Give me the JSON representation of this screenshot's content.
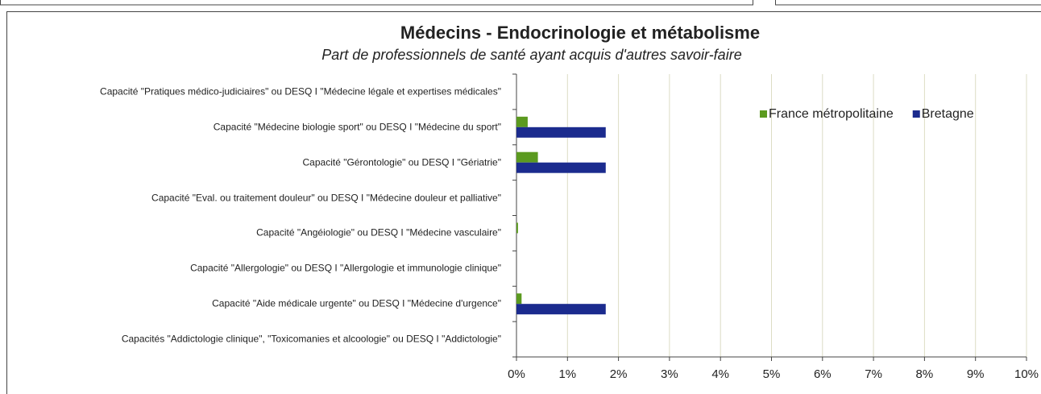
{
  "chart_data": {
    "type": "bar",
    "orientation": "horizontal",
    "title": "Médecins - Endocrinologie et métabolisme",
    "subtitle": "Part de professionnels de santé ayant acquis d'autres savoir-faire",
    "categories": [
      "Capacité \"Pratiques médico-judiciaires\" ou DESQ I \"Médecine légale et expertises médicales\"",
      "Capacité \"Médecine biologie sport\" ou DESQ I \"Médecine du sport\"",
      "Capacité \"Gérontologie\" ou DESQ I \"Gériatrie\"",
      "Capacité \"Eval. ou traitement douleur\" ou DESQ I \"Médecine douleur et palliative\"",
      "Capacité \"Angéiologie\" ou DESQ I \"Médecine vasculaire\"",
      "Capacité \"Allergologie\" ou DESQ I \"Allergologie et immunologie clinique\"",
      "Capacité \"Aide médicale urgente\" ou DESQ I \"Médecine d'urgence\"",
      "Capacités \"Addictologie clinique\", \"Toxicomanies et alcoologie\" ou DESQ I \"Addictologie\""
    ],
    "series": [
      {
        "name": "France métropolitaine",
        "color": "#5b9a1f",
        "values": [
          0,
          0.22,
          0.42,
          0,
          0.03,
          0,
          0.1,
          0
        ]
      },
      {
        "name": "Bretagne",
        "color": "#1b2b8e",
        "values": [
          0,
          1.75,
          1.75,
          0,
          0,
          0,
          1.75,
          0
        ]
      }
    ],
    "xlim": [
      0,
      10
    ],
    "xticks": [
      {
        "value": 0,
        "label": "0%"
      },
      {
        "value": 1,
        "label": "1%"
      },
      {
        "value": 2,
        "label": "2%"
      },
      {
        "value": 3,
        "label": "3%"
      },
      {
        "value": 4,
        "label": "4%"
      },
      {
        "value": 5,
        "label": "5%"
      },
      {
        "value": 6,
        "label": "6%"
      },
      {
        "value": 7,
        "label": "7%"
      },
      {
        "value": 8,
        "label": "8%"
      },
      {
        "value": 9,
        "label": "9%"
      },
      {
        "value": 10,
        "label": "10%"
      }
    ],
    "grid": true,
    "legend": "top-right"
  }
}
